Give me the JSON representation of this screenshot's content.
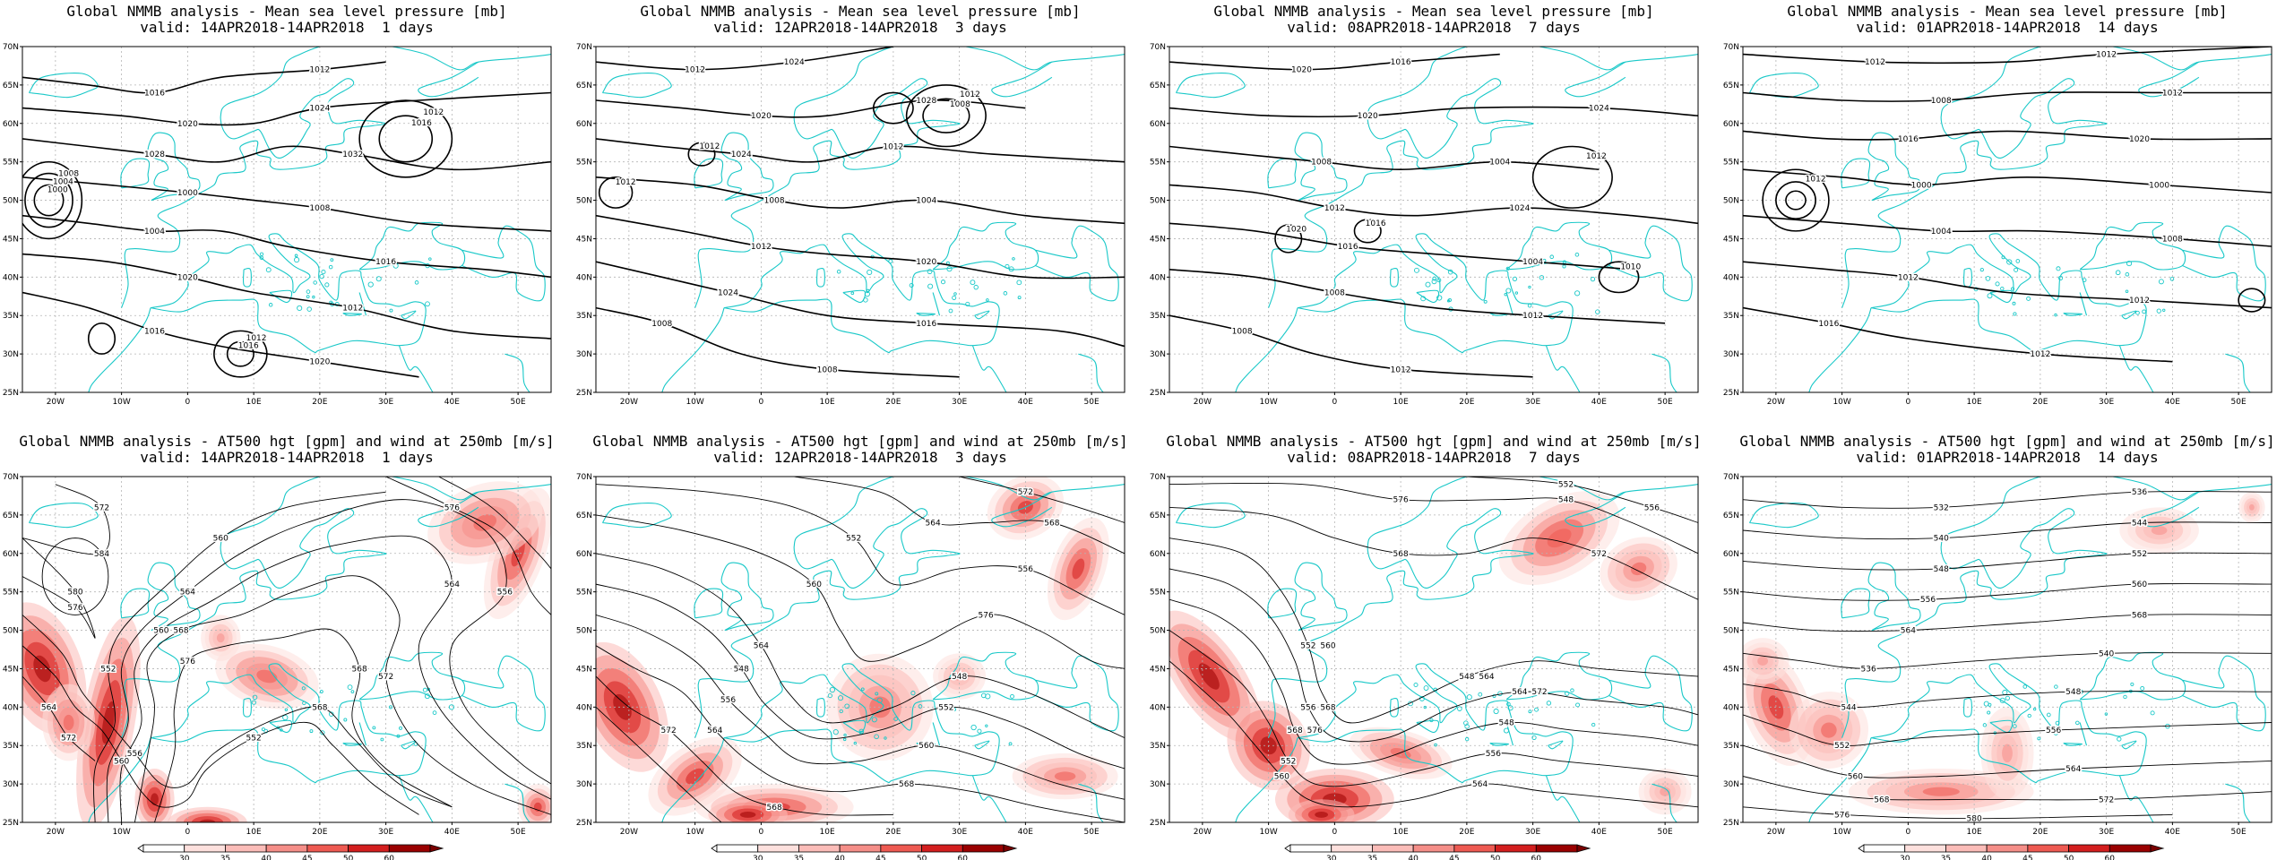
{
  "colors": {
    "coast": "#19c8c8",
    "grid": "#b4b4b4",
    "contour": "#000000",
    "wind": [
      "#fde0dd",
      "#fbbcb8",
      "#f58e88",
      "#ee5a52",
      "#d31e1e",
      "#9a0000"
    ]
  },
  "top_row_title": "Global NMMB analysis - Mean sea level pressure [mb]",
  "bottom_row_title": "Global NMMB analysis - AT500 hgt [gpm] and wind at 250mb [m/s]",
  "periods": [
    {
      "valid": "valid: 14APR2018-14APR2018",
      "days": "1 days"
    },
    {
      "valid": "valid: 12APR2018-14APR2018",
      "days": "3 days"
    },
    {
      "valid": "valid: 08APR2018-14APR2018",
      "days": "7 days"
    },
    {
      "valid": "valid: 01APR2018-14APR2018",
      "days": "14 days"
    }
  ],
  "axes": {
    "lon_ticks": [
      "20W",
      "10W",
      "0",
      "10E",
      "20E",
      "30E",
      "40E",
      "50E"
    ],
    "lat_ticks": [
      "25N",
      "30N",
      "35N",
      "40N",
      "45N",
      "50N",
      "55N",
      "60N",
      "65N",
      "70N"
    ]
  },
  "colorbar_levels": [
    "30",
    "35",
    "40",
    "45",
    "50",
    "60"
  ],
  "chart_data": [
    {
      "type": "contour",
      "title": "Global NMMB analysis - Mean sea level pressure [mb]",
      "valid": "valid: 14APR2018-14APR2018",
      "period": "1 days",
      "xlim": [
        "25W",
        "55E"
      ],
      "ylim": [
        "25N",
        "70N"
      ],
      "contour_labels": [
        "1016",
        "1012",
        "1020",
        "1024",
        "1028",
        "1032",
        "1000",
        "1008",
        "1004",
        "1016",
        "1020",
        "1012",
        "1016",
        "1020",
        "1008",
        "1004",
        "1000",
        "1012",
        "1016",
        "1012",
        "1016"
      ]
    },
    {
      "type": "contour",
      "title": "Global NMMB analysis - Mean sea level pressure [mb]",
      "valid": "valid: 12APR2018-14APR2018",
      "period": "3 days",
      "xlim": [
        "25W",
        "55E"
      ],
      "ylim": [
        "25N",
        "70N"
      ],
      "contour_labels": [
        "1012",
        "1024",
        "1020",
        "1028",
        "1024",
        "1012",
        "1008",
        "1004",
        "1012",
        "1020",
        "1024",
        "1016",
        "1008",
        "1008",
        "1012",
        "1008",
        "1012",
        "1012"
      ]
    },
    {
      "type": "contour",
      "title": "Global NMMB analysis - Mean sea level pressure [mb]",
      "valid": "valid: 08APR2018-14APR2018",
      "period": "7 days",
      "xlim": [
        "25W",
        "55E"
      ],
      "ylim": [
        "25N",
        "70N"
      ],
      "contour_labels": [
        "1020",
        "1016",
        "1020",
        "1024",
        "1008",
        "1004",
        "1012",
        "1024",
        "1016",
        "1004",
        "1008",
        "1012",
        "1008",
        "1012",
        "1012",
        "1020",
        "1016",
        "1010"
      ]
    },
    {
      "type": "contour",
      "title": "Global NMMB analysis - Mean sea level pressure [mb]",
      "valid": "valid: 01APR2018-14APR2018",
      "period": "14 days",
      "xlim": [
        "25W",
        "55E"
      ],
      "ylim": [
        "25N",
        "70N"
      ],
      "contour_labels": [
        "1012",
        "1012",
        "1008",
        "1012",
        "1016",
        "1020",
        "1000",
        "1000",
        "1004",
        "1008",
        "1012",
        "1012",
        "1016",
        "1012",
        "1012"
      ]
    },
    {
      "type": "contour",
      "title": "Global NMMB analysis - AT500 hgt [gpm] and wind at 250mb [m/s]",
      "valid": "valid: 14APR2018-14APR2018",
      "period": "1 days",
      "xlim": [
        "25W",
        "55E"
      ],
      "ylim": [
        "25N",
        "70N"
      ],
      "contour_labels": [
        "552",
        "560",
        "564",
        "556",
        "560",
        "564",
        "568",
        "572",
        "576",
        "568",
        "560",
        "552",
        "556",
        "568",
        "564",
        "572",
        "576",
        "580",
        "584",
        "572",
        "576"
      ],
      "wind_levels": [
        "30",
        "35",
        "40",
        "45",
        "50",
        "60"
      ]
    },
    {
      "type": "contour",
      "title": "Global NMMB analysis - AT500 hgt [gpm] and wind at 250mb [m/s]",
      "valid": "valid: 12APR2018-14APR2018",
      "period": "3 days",
      "xlim": [
        "25W",
        "55E"
      ],
      "ylim": [
        "25N",
        "70N"
      ],
      "contour_labels": [
        "564",
        "548",
        "548",
        "552",
        "556",
        "560",
        "564",
        "568",
        "572",
        "568",
        "560",
        "576",
        "552",
        "556",
        "564",
        "568",
        "572"
      ],
      "wind_levels": [
        "30",
        "35",
        "40",
        "45",
        "50",
        "60"
      ]
    },
    {
      "type": "contour",
      "title": "Global NMMB analysis - AT500 hgt [gpm] and wind at 250mb [m/s]",
      "valid": "valid: 08APR2018-14APR2018",
      "period": "7 days",
      "xlim": [
        "25W",
        "55E"
      ],
      "ylim": [
        "25N",
        "70N"
      ],
      "contour_labels": [
        "552",
        "548",
        "556",
        "564",
        "568",
        "548",
        "552",
        "556",
        "560",
        "564",
        "568",
        "572",
        "576",
        "548",
        "552",
        "556",
        "560",
        "564",
        "568",
        "572",
        "576"
      ],
      "wind_levels": [
        "30",
        "35",
        "40",
        "45",
        "50",
        "60"
      ]
    },
    {
      "type": "contour",
      "title": "Global NMMB analysis - AT500 hgt [gpm] and wind at 250mb [m/s]",
      "valid": "valid: 01APR2018-14APR2018",
      "period": "14 days",
      "xlim": [
        "25W",
        "55E"
      ],
      "ylim": [
        "25N",
        "70N"
      ],
      "contour_labels": [
        "532",
        "536",
        "540",
        "544",
        "548",
        "552",
        "556",
        "560",
        "564",
        "568",
        "536",
        "540",
        "544",
        "548",
        "552",
        "556",
        "560",
        "564",
        "568",
        "572",
        "576",
        "580"
      ],
      "wind_levels": [
        "30",
        "35",
        "40",
        "45",
        "50",
        "60"
      ]
    }
  ]
}
